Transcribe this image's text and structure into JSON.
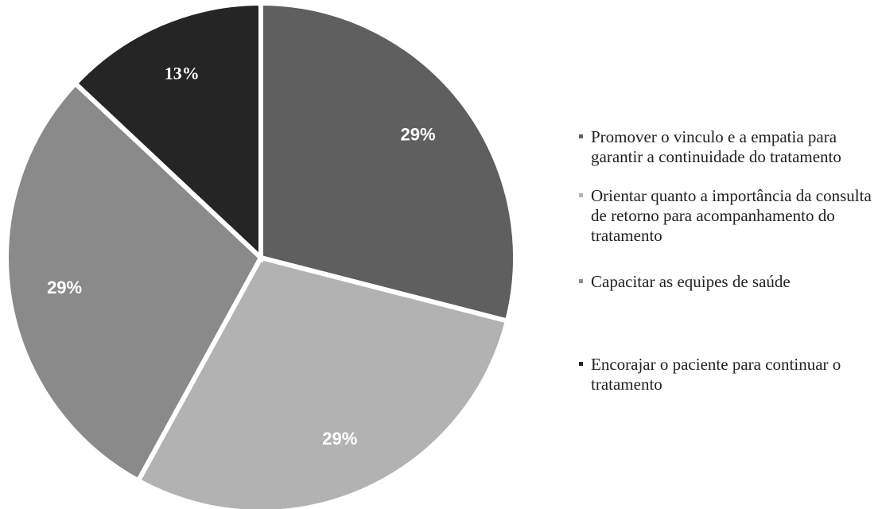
{
  "chart_data": {
    "type": "pie",
    "slices": [
      {
        "label": "Promover o vinculo e a empatia para garantir a continuidade do tratamento",
        "value": 29,
        "display": "29%",
        "color": "#5f5f5f"
      },
      {
        "label": "Orientar quanto a importância da consulta de retorno para acompanhamento do tratamento",
        "value": 29,
        "display": "29%",
        "color": "#b2b2b2"
      },
      {
        "label": "Capacitar as equipes de saúde",
        "value": 29,
        "display": "29%",
        "color": "#8a8a8a"
      },
      {
        "label": "Encorajar o paciente para continuar o tratamento",
        "value": 13,
        "display": "13%",
        "color": "#252525"
      }
    ],
    "legend_position": "right",
    "start_angle_deg": 0,
    "direction": "clockwise"
  }
}
